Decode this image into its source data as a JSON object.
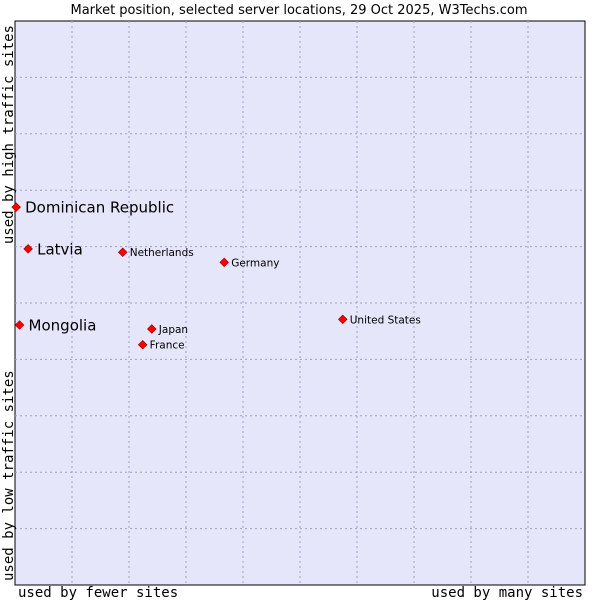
{
  "chart_data": {
    "type": "scatter",
    "title": "Market position, selected server locations, 29 Oct 2025, W3Techs.com",
    "xlabel_low": "used by fewer sites",
    "xlabel_high": "used by many sites",
    "ylabel_low": "used by low traffic sites",
    "ylabel_high": "used by high traffic sites",
    "xlim": [
      0,
      100
    ],
    "ylim": [
      0,
      100
    ],
    "grid": true,
    "colors": {
      "plot_bg": "#e6e6fa",
      "grid": "#a0a0c0",
      "marker": "#ff0000",
      "marker_edge": "#b00000"
    },
    "points": [
      {
        "name": "Dominican Republic",
        "x": 0.2,
        "y": 67.0,
        "emphasis": true
      },
      {
        "name": "Latvia",
        "x": 2.3,
        "y": 59.6,
        "emphasis": true
      },
      {
        "name": "Mongolia",
        "x": 0.8,
        "y": 46.1,
        "emphasis": true
      },
      {
        "name": "Netherlands",
        "x": 18.9,
        "y": 59.0,
        "emphasis": false
      },
      {
        "name": "Germany",
        "x": 36.7,
        "y": 57.2,
        "emphasis": false
      },
      {
        "name": "United States",
        "x": 57.5,
        "y": 47.1,
        "emphasis": false
      },
      {
        "name": "Japan",
        "x": 24.0,
        "y": 45.4,
        "emphasis": false
      },
      {
        "name": "France",
        "x": 22.4,
        "y": 42.6,
        "emphasis": false
      }
    ]
  }
}
